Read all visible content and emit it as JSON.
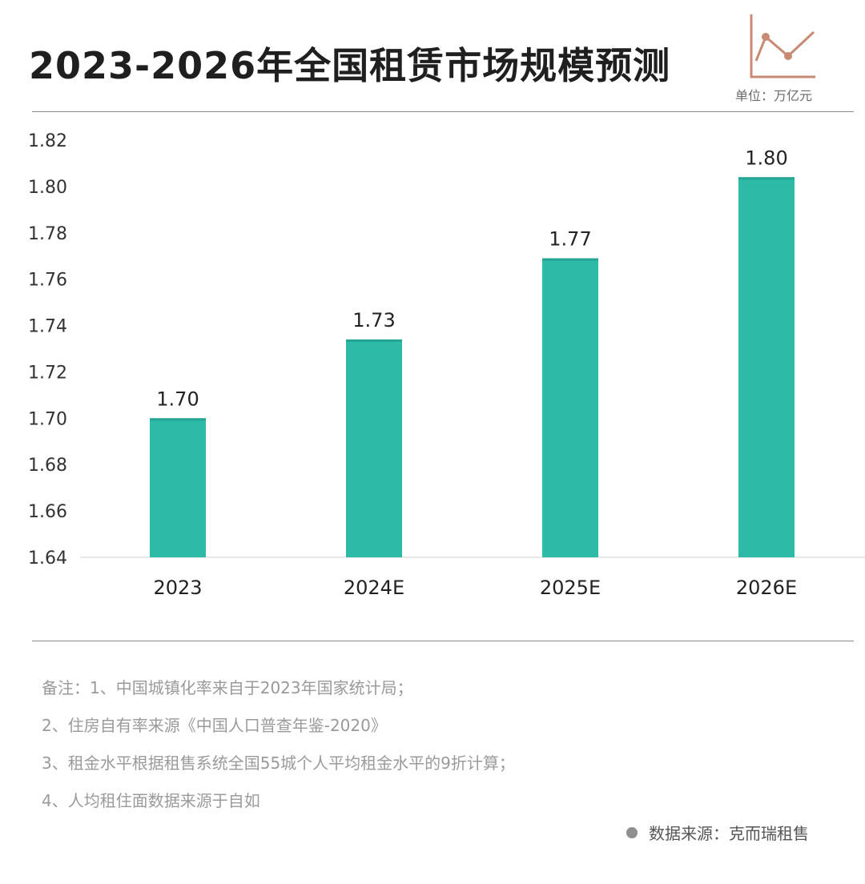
{
  "header": {
    "title": "2023-2026年全国租赁市场规模预测",
    "unit": "单位：万亿元",
    "unit_icon": "line-chart-icon"
  },
  "colors": {
    "bar": "#2dbaa7",
    "bar_top": "#24a594",
    "accent": "#c98a74",
    "title": "#1f1f1f",
    "note": "#9a9a9a"
  },
  "chart_data": {
    "type": "bar",
    "title": "2023-2026年全国租赁市场规模预测",
    "xlabel": "",
    "ylabel": "",
    "unit": "万亿元",
    "categories": [
      "2023",
      "2024E",
      "2025E",
      "2026E"
    ],
    "values": [
      1.7,
      1.734,
      1.769,
      1.804
    ],
    "data_labels": [
      "1.70",
      "1.73",
      "1.77",
      "1.80"
    ],
    "ylim": [
      1.64,
      1.82
    ],
    "yticks": [
      "1.64",
      "1.66",
      "1.68",
      "1.70",
      "1.72",
      "1.74",
      "1.76",
      "1.78",
      "1.80",
      "1.82"
    ],
    "grid": false,
    "legend": "none"
  },
  "notes": [
    "备注：1、中国城镇化率来自于2023年国家统计局；",
    "2、住房自有率来源《中国人口普查年鉴-2020》",
    "3、租金水平根据租售系统全国55城个人平均租金水平的9折计算；",
    "4、人均租住面数据来源于自如"
  ],
  "source": "数据来源：克而瑞租售"
}
